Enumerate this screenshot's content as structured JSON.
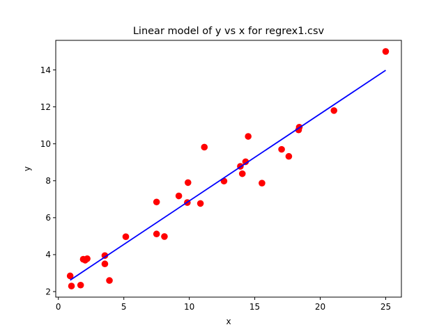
{
  "chart_data": {
    "type": "scatter",
    "title": "Linear model of y vs x for regrex1.csv",
    "xlabel": "x",
    "ylabel": "y",
    "xlim": [
      -0.2,
      26.2
    ],
    "ylim": [
      1.7,
      15.6
    ],
    "xticks": [
      0,
      5,
      10,
      15,
      20,
      25
    ],
    "yticks": [
      2,
      4,
      6,
      8,
      10,
      12,
      14
    ],
    "grid": false,
    "legend": "none",
    "series": [
      {
        "kind": "points",
        "color": "#ff0000",
        "points": [
          [
            0.9,
            2.85
          ],
          [
            1.0,
            2.3
          ],
          [
            1.7,
            2.35
          ],
          [
            1.9,
            3.75
          ],
          [
            2.05,
            3.7
          ],
          [
            2.2,
            3.78
          ],
          [
            3.55,
            3.95
          ],
          [
            3.55,
            3.5
          ],
          [
            3.9,
            2.6
          ],
          [
            5.15,
            4.97
          ],
          [
            7.5,
            6.85
          ],
          [
            7.5,
            5.12
          ],
          [
            8.1,
            4.98
          ],
          [
            9.2,
            7.18
          ],
          [
            9.85,
            6.82
          ],
          [
            9.9,
            7.9
          ],
          [
            10.85,
            6.77
          ],
          [
            11.15,
            9.82
          ],
          [
            12.65,
            7.98
          ],
          [
            13.9,
            8.78
          ],
          [
            14.05,
            8.38
          ],
          [
            14.3,
            9.03
          ],
          [
            14.5,
            10.4
          ],
          [
            15.55,
            7.87
          ],
          [
            17.05,
            9.7
          ],
          [
            17.6,
            9.32
          ],
          [
            18.35,
            10.75
          ],
          [
            18.4,
            10.9
          ],
          [
            21.05,
            11.8
          ],
          [
            25.0,
            15.0
          ]
        ]
      },
      {
        "kind": "line",
        "color": "#0000ff",
        "points": [
          [
            0.9,
            2.62
          ],
          [
            25.0,
            13.98
          ]
        ]
      }
    ]
  }
}
